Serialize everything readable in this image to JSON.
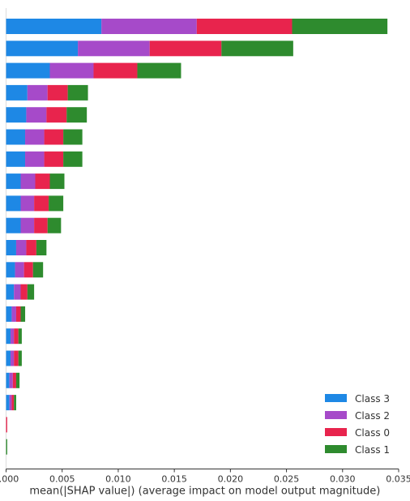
{
  "chart_data": {
    "type": "bar",
    "orientation": "horizontal",
    "stacked": true,
    "title": "",
    "xlabel": "mean(|SHAP value|) (average impact on model output magnitude)",
    "ylabel": "",
    "xlim": [
      0,
      0.035
    ],
    "x_ticks": [
      "0.000",
      "0.005",
      "0.010",
      "0.015",
      "0.020",
      "0.025",
      "0.030",
      "0.035"
    ],
    "grid": false,
    "legend_position": "lower-right",
    "row_count": 20,
    "series": [
      {
        "name": "Class 3",
        "color": "#1e88e5",
        "values": [
          0.0085,
          0.0064,
          0.0039,
          0.0019,
          0.0018,
          0.0017,
          0.0017,
          0.0013,
          0.0013,
          0.0013,
          0.0009,
          0.0008,
          0.0007,
          0.0005,
          0.0004,
          0.0004,
          0.0003,
          0.0003,
          0.0,
          0.0
        ]
      },
      {
        "name": "Class 2",
        "color": "#a64ac9",
        "values": [
          0.0085,
          0.0064,
          0.0039,
          0.0018,
          0.0018,
          0.0017,
          0.0017,
          0.0013,
          0.0012,
          0.0012,
          0.0009,
          0.0008,
          0.0006,
          0.0004,
          0.0003,
          0.0003,
          0.0003,
          0.0002,
          0.0,
          0.0
        ]
      },
      {
        "name": "Class 0",
        "color": "#e8244d",
        "values": [
          0.0085,
          0.0064,
          0.0039,
          0.0018,
          0.0018,
          0.0017,
          0.0017,
          0.0013,
          0.0013,
          0.0012,
          0.0009,
          0.0008,
          0.0006,
          0.0004,
          0.0004,
          0.0004,
          0.0003,
          0.0002,
          0.0001,
          0.0
        ]
      },
      {
        "name": "Class 1",
        "color": "#2e8b2e",
        "values": [
          0.0085,
          0.0064,
          0.0039,
          0.0018,
          0.0018,
          0.0017,
          0.0017,
          0.0013,
          0.0013,
          0.0012,
          0.0009,
          0.0009,
          0.0006,
          0.0004,
          0.0003,
          0.0003,
          0.0003,
          0.0002,
          0.0,
          0.0001
        ]
      }
    ],
    "legend_order": [
      "Class 3",
      "Class 2",
      "Class 0",
      "Class 1"
    ]
  }
}
